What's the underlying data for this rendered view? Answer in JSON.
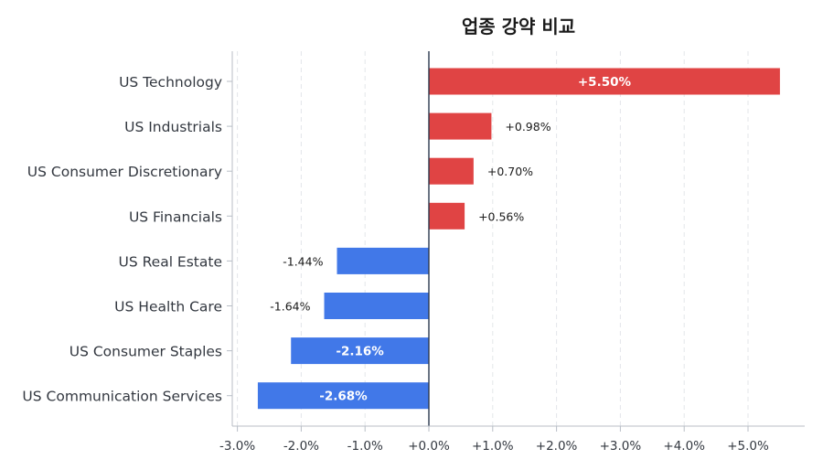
{
  "chart_data": {
    "type": "bar",
    "orientation": "horizontal",
    "title": "업종 강약 비교",
    "xlabel": "",
    "ylabel": "",
    "xlim": [
      -3.15,
      5.9
    ],
    "xticks": [
      -3.0,
      -2.0,
      -1.0,
      0.0,
      1.0,
      2.0,
      3.0,
      4.0,
      5.0
    ],
    "xtick_labels": [
      "-3.0%",
      "-2.0%",
      "-1.0%",
      "+0.0%",
      "+1.0%",
      "+2.0%",
      "+3.0%",
      "+4.0%",
      "+5.0%"
    ],
    "categories": [
      "US Technology",
      "US Industrials",
      "US Consumer Discretionary",
      "US Financials",
      "US Real Estate",
      "US Health Care",
      "US Consumer Staples",
      "US Communication Services"
    ],
    "values": [
      5.5,
      0.98,
      0.7,
      0.56,
      -1.44,
      -1.64,
      -2.16,
      -2.68
    ],
    "value_labels": [
      "+5.50%",
      "+0.98%",
      "+0.70%",
      "+0.56%",
      "-1.44%",
      "-1.64%",
      "-2.16%",
      "-2.68%"
    ],
    "colors": {
      "positive": "#e04444",
      "negative": "#4178e8",
      "zero_line": "#2c3a4f",
      "grid": "#e3e6ea",
      "axis": "#b8bec6"
    },
    "grid": "vertical dashed",
    "legend": "none"
  }
}
